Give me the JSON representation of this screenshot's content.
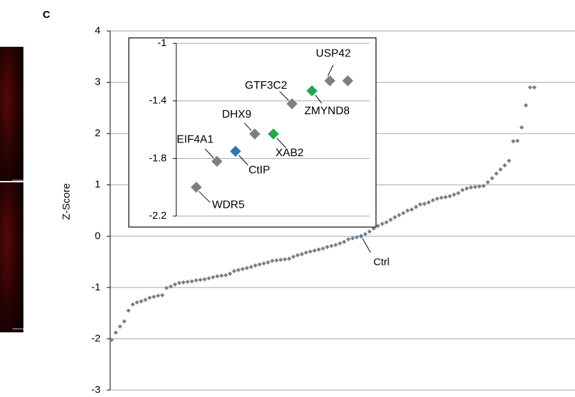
{
  "panel_label": "C",
  "chart_data": [
    {
      "type": "scatter",
      "ylabel": "Z-Score",
      "ylim": [
        -3,
        4
      ],
      "yticks": [
        -3,
        -2,
        -1,
        0,
        1,
        2,
        3,
        4
      ],
      "grid": true,
      "color": "#7f7f7f",
      "highlight_color": "#2e75b6",
      "annotations": [
        {
          "text": "Ctrl",
          "point": 59
        }
      ],
      "values": [
        -2.02,
        -1.88,
        -1.76,
        -1.66,
        -1.45,
        -1.33,
        -1.29,
        -1.27,
        -1.24,
        -1.2,
        -1.18,
        -1.16,
        -1.15,
        -1.01,
        -0.98,
        -0.94,
        -0.91,
        -0.9,
        -0.89,
        -0.88,
        -0.86,
        -0.85,
        -0.84,
        -0.82,
        -0.8,
        -0.78,
        -0.77,
        -0.76,
        -0.73,
        -0.68,
        -0.66,
        -0.64,
        -0.62,
        -0.6,
        -0.57,
        -0.55,
        -0.53,
        -0.51,
        -0.48,
        -0.47,
        -0.46,
        -0.45,
        -0.44,
        -0.4,
        -0.37,
        -0.35,
        -0.32,
        -0.3,
        -0.28,
        -0.26,
        -0.24,
        -0.21,
        -0.19,
        -0.17,
        -0.14,
        -0.11,
        -0.06,
        -0.04,
        -0.02,
        0,
        0.04,
        0.09,
        0.15,
        0.2,
        0.24,
        0.27,
        0.32,
        0.37,
        0.41,
        0.45,
        0.5,
        0.52,
        0.57,
        0.62,
        0.63,
        0.66,
        0.7,
        0.73,
        0.75,
        0.76,
        0.78,
        0.81,
        0.84,
        0.9,
        0.93,
        0.95,
        0.96,
        0.97,
        0.98,
        1.05,
        1.13,
        1.22,
        1.3,
        1.38,
        1.47,
        1.85,
        1.86,
        2.12,
        2.55,
        2.9,
        2.9
      ]
    },
    {
      "type": "scatter",
      "ylim": [
        -2.2,
        -1
      ],
      "yticks": [
        -1,
        -1.4,
        -1.8,
        -2.2
      ],
      "grid": true,
      "categories": [
        "WDR5",
        "EIF4A1",
        "CtIP",
        "DHX9",
        "XAB2",
        "GTF3C2",
        "ZMYND8",
        "USP42",
        null
      ],
      "values": [
        -2.0,
        -1.82,
        -1.75,
        -1.63,
        -1.63,
        -1.42,
        -1.33,
        -1.26,
        -1.26
      ],
      "colors": [
        "#7f7f7f",
        "#7f7f7f",
        "#2e75b6",
        "#7f7f7f",
        "#1ea84f",
        "#7f7f7f",
        "#1ea84f",
        "#7f7f7f",
        "#7f7f7f"
      ]
    }
  ]
}
